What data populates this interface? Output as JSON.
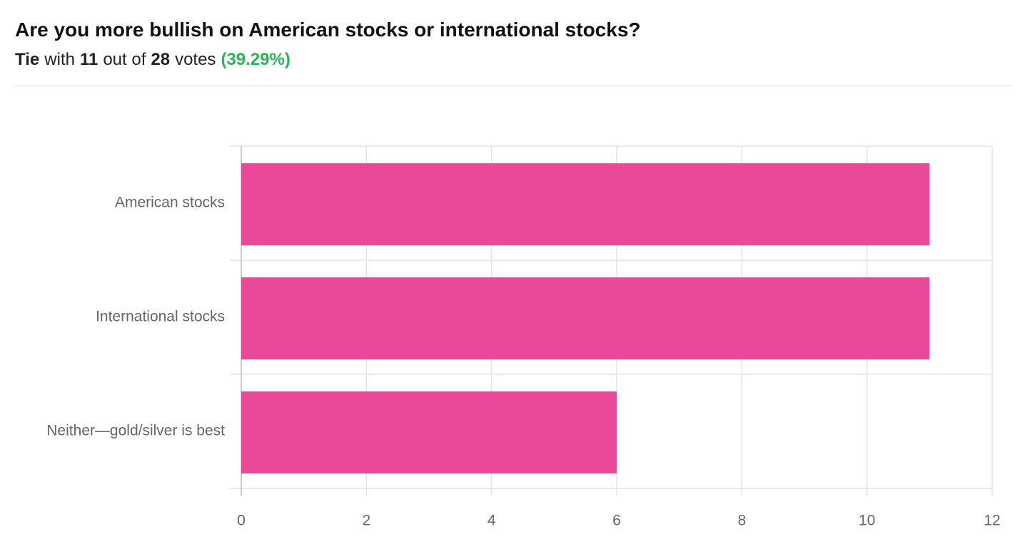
{
  "header": {
    "title": "Are you more bullish on American stocks or international stocks?",
    "subtitle": [
      {
        "text": "Tie",
        "style": "bold"
      },
      {
        "text": "with",
        "style": "normal"
      },
      {
        "text": "11",
        "style": "bold"
      },
      {
        "text": "out of",
        "style": "normal"
      },
      {
        "text": "28",
        "style": "bold"
      },
      {
        "text": "votes",
        "style": "normal"
      },
      {
        "text": "(39.29%)",
        "style": "green"
      }
    ]
  },
  "chart_data": {
    "type": "bar",
    "orientation": "horizontal",
    "categories": [
      "American stocks",
      "International stocks",
      "Neither—gold/silver is best"
    ],
    "values": [
      11,
      11,
      6
    ],
    "color": "#ea4899",
    "xlim": [
      0,
      12
    ],
    "xticks": [
      0,
      2,
      4,
      6,
      8,
      10,
      12
    ],
    "grid": true
  }
}
